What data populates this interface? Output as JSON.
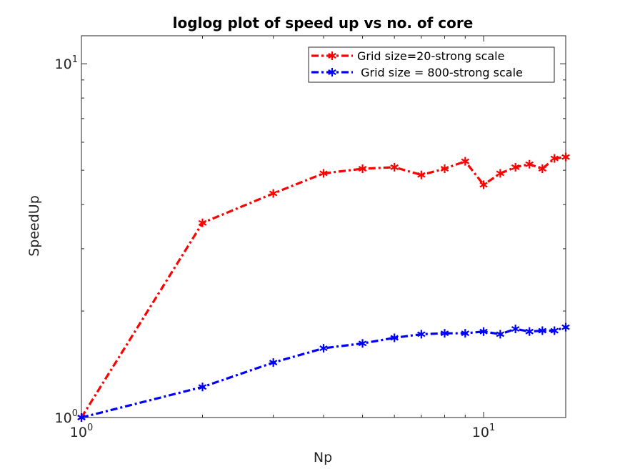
{
  "chart_data": {
    "type": "line",
    "title": "loglog plot of speed up vs no. of core",
    "xlabel": "Np",
    "ylabel": "SpeedUp",
    "xscale": "log",
    "yscale": "log",
    "xlim": [
      1,
      16
    ],
    "ylim": [
      1,
      12
    ],
    "xticks": [
      {
        "base": "10",
        "exp": "0",
        "value": 1
      },
      {
        "base": "10",
        "exp": "1",
        "value": 10
      }
    ],
    "yticks": [
      {
        "base": "10",
        "exp": "0",
        "value": 1
      },
      {
        "base": "10",
        "exp": "1",
        "value": 10
      }
    ],
    "grid": false,
    "box": true,
    "legend_position": "top-right",
    "x": [
      1,
      2,
      3,
      4,
      5,
      6,
      7,
      8,
      9,
      10,
      11,
      12,
      13,
      14,
      15,
      16
    ],
    "series": [
      {
        "name": "Grid size=20-strong scale",
        "color": "#ff0000",
        "line_style": "dash-dot",
        "marker": "star",
        "values": [
          1.0,
          3.55,
          4.3,
          4.9,
          5.05,
          5.1,
          4.85,
          5.05,
          5.3,
          4.55,
          4.9,
          5.1,
          5.2,
          5.05,
          5.4,
          5.45
        ]
      },
      {
        "name": " Grid size = 800-strong scale",
        "color": "#0000ff",
        "line_style": "dash-dot",
        "marker": "star",
        "values": [
          1.0,
          1.22,
          1.43,
          1.57,
          1.62,
          1.68,
          1.72,
          1.73,
          1.73,
          1.75,
          1.72,
          1.78,
          1.75,
          1.76,
          1.76,
          1.8
        ]
      }
    ]
  }
}
